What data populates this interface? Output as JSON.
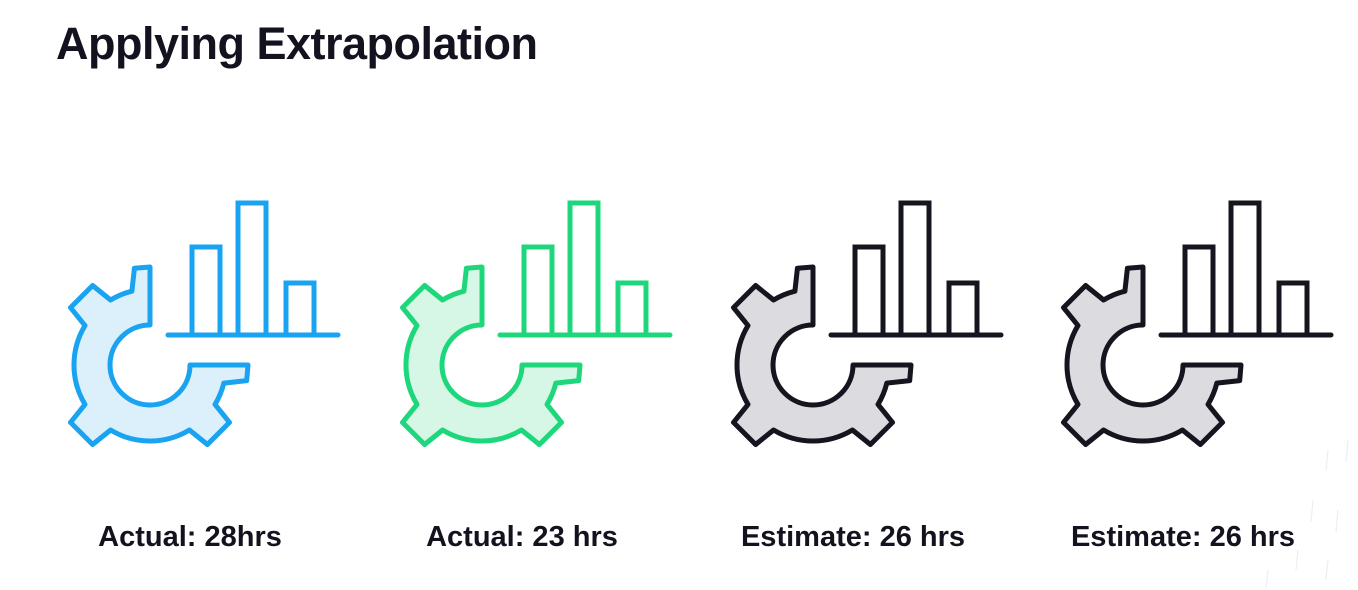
{
  "title": "Applying Extrapolation",
  "items": [
    {
      "label": "Actual: 28hrs",
      "icon": "gear-with-bar-chart-icon",
      "stroke": "#1aa3f0",
      "fill": "#dcf0fc"
    },
    {
      "label": "Actual: 23 hrs",
      "icon": "gear-with-bar-chart-icon",
      "stroke": "#1ed77c",
      "fill": "#d6f7e6"
    },
    {
      "label": "Estimate: 26 hrs",
      "icon": "gear-with-bar-chart-icon",
      "stroke": "#16141f",
      "fill": "#dcdce0"
    },
    {
      "label": "Estimate: 26 hrs",
      "icon": "gear-with-bar-chart-icon",
      "stroke": "#16141f",
      "fill": "#dcdce0"
    }
  ]
}
